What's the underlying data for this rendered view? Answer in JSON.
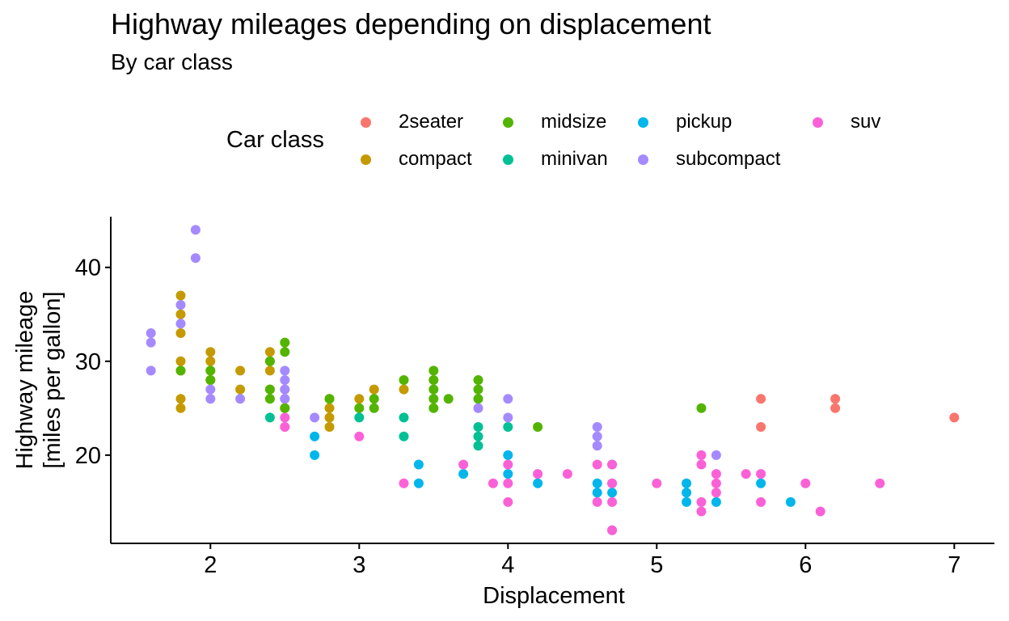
{
  "chart_data": {
    "type": "scatter",
    "title": "Highway mileages depending on displacement",
    "subtitle": "By car class",
    "xlabel": "Displacement",
    "ylabel_line1": "Highway mileage",
    "ylabel_line2": "[miles per gallon]",
    "xlim": [
      1.33,
      7.27
    ],
    "ylim": [
      10.6,
      45.4
    ],
    "xticks": [
      2,
      3,
      4,
      5,
      6,
      7
    ],
    "yticks": [
      20,
      30,
      40
    ],
    "grid": false,
    "legend": {
      "title": "Car class",
      "placement": "top",
      "entries": [
        {
          "name": "2seater",
          "color": "#F8766D"
        },
        {
          "name": "compact",
          "color": "#C49A00"
        },
        {
          "name": "midsize",
          "color": "#53B400"
        },
        {
          "name": "minivan",
          "color": "#00C094"
        },
        {
          "name": "pickup",
          "color": "#00B6EB"
        },
        {
          "name": "subcompact",
          "color": "#A58AFF"
        },
        {
          "name": "suv",
          "color": "#FB61D7"
        }
      ]
    },
    "series": [
      {
        "name": "2seater",
        "color": "#F8766D",
        "points": [
          [
            5.7,
            26
          ],
          [
            5.7,
            23
          ],
          [
            6.2,
            26
          ],
          [
            6.2,
            25
          ],
          [
            7.0,
            24
          ]
        ]
      },
      {
        "name": "compact",
        "color": "#C49A00",
        "points": [
          [
            1.8,
            37
          ],
          [
            1.8,
            35
          ],
          [
            1.8,
            33
          ],
          [
            1.8,
            30
          ],
          [
            1.8,
            29
          ],
          [
            1.8,
            26
          ],
          [
            1.8,
            25
          ],
          [
            2.0,
            31
          ],
          [
            2.0,
            30
          ],
          [
            2.0,
            29
          ],
          [
            2.0,
            28
          ],
          [
            2.2,
            29
          ],
          [
            2.2,
            27
          ],
          [
            2.4,
            31
          ],
          [
            2.4,
            30
          ],
          [
            2.4,
            29
          ],
          [
            2.4,
            27
          ],
          [
            2.5,
            27
          ],
          [
            2.5,
            26
          ],
          [
            2.5,
            25
          ],
          [
            2.8,
            26
          ],
          [
            2.8,
            25
          ],
          [
            2.8,
            24
          ],
          [
            2.8,
            23
          ],
          [
            3.0,
            26
          ],
          [
            3.1,
            27
          ],
          [
            3.3,
            27
          ]
        ]
      },
      {
        "name": "midsize",
        "color": "#53B400",
        "points": [
          [
            1.8,
            29
          ],
          [
            2.0,
            29
          ],
          [
            2.0,
            28
          ],
          [
            2.4,
            30
          ],
          [
            2.4,
            27
          ],
          [
            2.4,
            26
          ],
          [
            2.5,
            32
          ],
          [
            2.5,
            31
          ],
          [
            2.5,
            25
          ],
          [
            2.8,
            26
          ],
          [
            3.0,
            25
          ],
          [
            3.1,
            26
          ],
          [
            3.1,
            25
          ],
          [
            3.3,
            28
          ],
          [
            3.5,
            29
          ],
          [
            3.5,
            28
          ],
          [
            3.5,
            27
          ],
          [
            3.5,
            26
          ],
          [
            3.5,
            25
          ],
          [
            3.6,
            26
          ],
          [
            3.8,
            28
          ],
          [
            3.8,
            27
          ],
          [
            3.8,
            26
          ],
          [
            4.2,
            23
          ],
          [
            5.3,
            25
          ]
        ]
      },
      {
        "name": "minivan",
        "color": "#00C094",
        "points": [
          [
            2.4,
            24
          ],
          [
            3.0,
            24
          ],
          [
            3.3,
            24
          ],
          [
            3.3,
            22
          ],
          [
            3.8,
            23
          ],
          [
            3.8,
            22
          ],
          [
            3.8,
            21
          ],
          [
            4.0,
            23
          ]
        ]
      },
      {
        "name": "pickup",
        "color": "#00B6EB",
        "points": [
          [
            2.7,
            22
          ],
          [
            2.7,
            20
          ],
          [
            3.4,
            19
          ],
          [
            3.4,
            17
          ],
          [
            3.7,
            18
          ],
          [
            4.0,
            20
          ],
          [
            4.0,
            18
          ],
          [
            4.2,
            17
          ],
          [
            4.6,
            17
          ],
          [
            4.6,
            16
          ],
          [
            4.7,
            19
          ],
          [
            4.7,
            17
          ],
          [
            4.7,
            16
          ],
          [
            4.7,
            12
          ],
          [
            5.2,
            17
          ],
          [
            5.2,
            16
          ],
          [
            5.2,
            15
          ],
          [
            5.4,
            15
          ],
          [
            5.7,
            17
          ],
          [
            5.9,
            15
          ]
        ]
      },
      {
        "name": "subcompact",
        "color": "#A58AFF",
        "points": [
          [
            1.6,
            33
          ],
          [
            1.6,
            32
          ],
          [
            1.6,
            29
          ],
          [
            1.8,
            36
          ],
          [
            1.8,
            34
          ],
          [
            1.9,
            44
          ],
          [
            1.9,
            41
          ],
          [
            2.0,
            27
          ],
          [
            2.0,
            26
          ],
          [
            2.2,
            26
          ],
          [
            2.5,
            29
          ],
          [
            2.5,
            28
          ],
          [
            2.5,
            27
          ],
          [
            2.5,
            26
          ],
          [
            2.7,
            24
          ],
          [
            3.8,
            25
          ],
          [
            4.0,
            26
          ],
          [
            4.0,
            24
          ],
          [
            4.6,
            23
          ],
          [
            4.6,
            22
          ],
          [
            4.6,
            21
          ],
          [
            5.4,
            20
          ]
        ]
      },
      {
        "name": "suv",
        "color": "#FB61D7",
        "points": [
          [
            2.5,
            24
          ],
          [
            2.5,
            23
          ],
          [
            3.0,
            22
          ],
          [
            3.3,
            17
          ],
          [
            3.7,
            19
          ],
          [
            3.9,
            17
          ],
          [
            4.0,
            19
          ],
          [
            4.0,
            17
          ],
          [
            4.0,
            15
          ],
          [
            4.2,
            18
          ],
          [
            4.4,
            18
          ],
          [
            4.6,
            19
          ],
          [
            4.6,
            15
          ],
          [
            4.7,
            19
          ],
          [
            4.7,
            17
          ],
          [
            4.7,
            15
          ],
          [
            4.7,
            12
          ],
          [
            5.0,
            17
          ],
          [
            5.3,
            20
          ],
          [
            5.3,
            19
          ],
          [
            5.3,
            15
          ],
          [
            5.3,
            14
          ],
          [
            5.4,
            18
          ],
          [
            5.4,
            17
          ],
          [
            5.4,
            16
          ],
          [
            5.6,
            18
          ],
          [
            5.7,
            18
          ],
          [
            5.7,
            15
          ],
          [
            6.0,
            17
          ],
          [
            6.1,
            14
          ],
          [
            6.5,
            17
          ]
        ]
      }
    ]
  }
}
